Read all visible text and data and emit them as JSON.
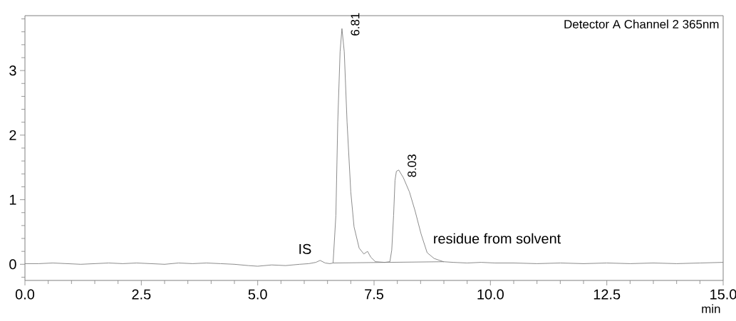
{
  "chart_data": {
    "type": "line",
    "xlabel": "min",
    "annotations": [
      {
        "text": "6.81",
        "x": 6.81,
        "y": 3.65
      },
      {
        "text": "8.03",
        "x": 8.03,
        "y": 1.46
      },
      "IS",
      "residue from solvent",
      "Detector A Channel 2 365nm"
    ],
    "series": [
      {
        "color": "#7f7f7f",
        "x": [
          0.0,
          0.3,
          0.6,
          0.9,
          1.2,
          1.5,
          1.8,
          2.1,
          2.4,
          2.7,
          3.0,
          3.3,
          3.6,
          3.9,
          4.2,
          4.5,
          4.8,
          5.0,
          5.3,
          5.6,
          5.9,
          6.1,
          6.25,
          6.34,
          6.45,
          6.55,
          6.62,
          6.68,
          6.72,
          6.77,
          6.81,
          6.86,
          6.92,
          7.0,
          7.07,
          7.18,
          7.28,
          7.36,
          7.43,
          7.53,
          7.73,
          7.84,
          7.88,
          7.92,
          7.95,
          7.98,
          8.03,
          8.13,
          8.26,
          8.38,
          8.51,
          8.64,
          8.79,
          8.99,
          9.2,
          9.5,
          9.8,
          10.1,
          10.5,
          11.0,
          11.5,
          12.0,
          12.5,
          13.0,
          13.5,
          14.0,
          14.5,
          15.0
        ],
        "values": [
          0.01,
          0.01,
          0.02,
          0.01,
          0.0,
          0.01,
          0.02,
          0.01,
          0.02,
          0.01,
          0.0,
          0.02,
          0.01,
          0.02,
          0.01,
          0.0,
          -0.02,
          -0.03,
          -0.01,
          -0.02,
          0.0,
          0.01,
          0.03,
          0.06,
          0.02,
          0.01,
          0.02,
          0.76,
          2.2,
          3.29,
          3.65,
          3.29,
          2.2,
          1.12,
          0.58,
          0.25,
          0.16,
          0.2,
          0.11,
          0.04,
          0.03,
          0.04,
          0.22,
          0.76,
          1.3,
          1.44,
          1.46,
          1.34,
          1.12,
          0.83,
          0.47,
          0.18,
          0.09,
          0.04,
          0.03,
          0.02,
          0.03,
          0.02,
          0.02,
          0.01,
          0.02,
          0.01,
          0.02,
          0.01,
          0.02,
          0.01,
          0.02,
          0.03
        ]
      },
      {
        "color": "#7f7f7f",
        "x": [
          6.62,
          9.0
        ],
        "values": [
          0.02,
          0.04
        ]
      }
    ],
    "xlim": [
      0,
      15
    ],
    "xticks": [
      {
        "value": 0,
        "label": "0.0"
      },
      {
        "value": 0.5,
        "label": null
      },
      {
        "value": 1,
        "label": null
      },
      {
        "value": 1.5,
        "label": null
      },
      {
        "value": 2,
        "label": null
      },
      2.5,
      {
        "value": 3,
        "label": null
      },
      {
        "value": 3.5,
        "label": null
      },
      {
        "value": 4,
        "label": null
      },
      {
        "value": 4.5,
        "label": null
      },
      {
        "value": 5,
        "label": "5.0"
      },
      {
        "value": 5.5,
        "label": null
      },
      {
        "value": 6,
        "label": null
      },
      {
        "value": 6.5,
        "label": null
      },
      {
        "value": 7,
        "label": null
      },
      7.5,
      {
        "value": 8,
        "label": null
      },
      {
        "value": 8.5,
        "label": null
      },
      {
        "value": 9,
        "label": null
      },
      {
        "value": 9.5,
        "label": null
      },
      {
        "value": 10,
        "label": "10.0"
      },
      {
        "value": 10.5,
        "label": null
      },
      {
        "value": 11,
        "label": null
      },
      {
        "value": 11.5,
        "label": null
      },
      {
        "value": 12,
        "label": null
      },
      12.5,
      {
        "value": 13,
        "label": null
      },
      {
        "value": 13.5,
        "label": null
      },
      {
        "value": 14,
        "label": null
      },
      {
        "value": 14.5,
        "label": null
      },
      {
        "value": 15,
        "label": "15.0"
      }
    ],
    "ylim": [
      -0.25,
      3.85
    ],
    "yticks": [
      {
        "value": -0.2,
        "label": null
      },
      0,
      {
        "value": 0.2,
        "label": null
      },
      {
        "value": 0.4,
        "label": null
      },
      {
        "value": 0.6,
        "label": null
      },
      {
        "value": 0.8,
        "label": null
      },
      1,
      {
        "value": 1.2,
        "label": null
      },
      {
        "value": 1.4,
        "label": null
      },
      {
        "value": 1.6,
        "label": null
      },
      {
        "value": 1.8,
        "label": null
      },
      2,
      {
        "value": 2.2,
        "label": null
      },
      {
        "value": 2.4,
        "label": null
      },
      {
        "value": 2.6,
        "label": null
      },
      {
        "value": 2.8,
        "label": null
      },
      3,
      {
        "value": 3.2,
        "label": null
      },
      {
        "value": 3.4,
        "label": null
      },
      {
        "value": 3.6,
        "label": null
      },
      {
        "value": 3.8,
        "label": null
      }
    ]
  }
}
